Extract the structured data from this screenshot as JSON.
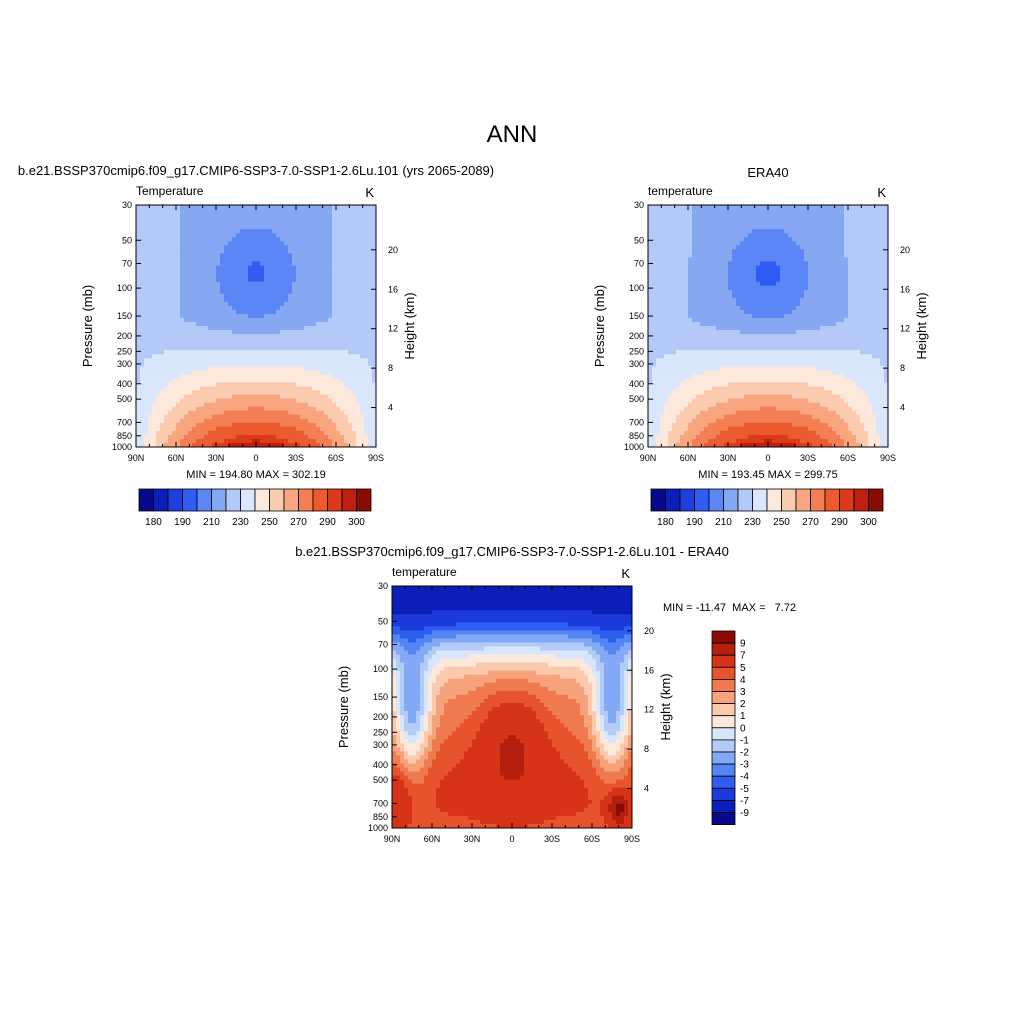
{
  "figure": {
    "title": "ANN"
  },
  "colors": {
    "abs_palette": [
      "#08088a",
      "#0b1fb8",
      "#1f3fdc",
      "#2f5cf2",
      "#5b86f5",
      "#86a8f3",
      "#b4c9f7",
      "#d9e6fb",
      "#fde8dc",
      "#fbcbb0",
      "#f8a680",
      "#f47f55",
      "#ec5a30",
      "#dd3a1c",
      "#c02010",
      "#8c0a06"
    ],
    "diff_palette": [
      "#08088a",
      "#0b1fb8",
      "#1a3ad9",
      "#2e5ef0",
      "#5584f4",
      "#83a9f6",
      "#b2cbf8",
      "#d7e6fb",
      "#fde9dc",
      "#fbc9ad",
      "#f6a27b",
      "#f07a50",
      "#e7532c",
      "#d63318",
      "#b41f0e",
      "#8a0a05"
    ]
  },
  "chart_data": [
    {
      "type": "heatmap",
      "name": "model",
      "title": "b.e21.BSSP370cmip6.f09_g17.CMIP6-SSP3-7.0-SSP1-2.6Lu.101 (yrs 2065-2089)",
      "left_label": "Temperature",
      "right_label": "K",
      "ylabel": "Pressure (mb)",
      "y2label": "Height (km)",
      "x_ticks": [
        "90N",
        "60N",
        "30N",
        "0",
        "30S",
        "60S",
        "90S"
      ],
      "y_ticks": [
        30,
        50,
        70,
        100,
        150,
        200,
        250,
        300,
        400,
        500,
        700,
        850,
        1000
      ],
      "y2_ticks": [
        20,
        16,
        12,
        8,
        4
      ],
      "ylim": [
        1000,
        30
      ],
      "y_scale": "log",
      "stats": "MIN = 194.80  MAX = 302.19",
      "levels": [
        180,
        185,
        190,
        200,
        210,
        220,
        230,
        240,
        250,
        260,
        270,
        280,
        290,
        295,
        300
      ],
      "colorbar_labels": [
        "180",
        "190",
        "210",
        "230",
        "250",
        "270",
        "290",
        "300"
      ],
      "colorbar_orientation": "horizontal"
    },
    {
      "type": "heatmap",
      "name": "obs",
      "title": "ERA40",
      "left_label": "temperature",
      "right_label": "K",
      "ylabel": "Pressure (mb)",
      "y2label": "Height (km)",
      "x_ticks": [
        "90N",
        "60N",
        "30N",
        "0",
        "30S",
        "60S",
        "90S"
      ],
      "y_ticks": [
        30,
        50,
        70,
        100,
        150,
        200,
        250,
        300,
        400,
        500,
        700,
        850,
        1000
      ],
      "y2_ticks": [
        20,
        16,
        12,
        8,
        4
      ],
      "ylim": [
        1000,
        30
      ],
      "y_scale": "log",
      "stats": "MIN = 193.45  MAX = 299.75",
      "levels": [
        180,
        185,
        190,
        200,
        210,
        220,
        230,
        240,
        250,
        260,
        270,
        280,
        290,
        295,
        300
      ],
      "colorbar_labels": [
        "180",
        "190",
        "210",
        "230",
        "250",
        "270",
        "290",
        "300"
      ],
      "colorbar_orientation": "horizontal"
    },
    {
      "type": "heatmap",
      "name": "diff",
      "title": "b.e21.BSSP370cmip6.f09_g17.CMIP6-SSP3-7.0-SSP1-2.6Lu.101 - ERA40",
      "left_label": "temperature",
      "right_label": "K",
      "ylabel": "Pressure (mb)",
      "y2label": "Height (km)",
      "x_ticks": [
        "90N",
        "60N",
        "30N",
        "0",
        "30S",
        "60S",
        "90S"
      ],
      "y_ticks": [
        30,
        50,
        70,
        100,
        150,
        200,
        250,
        300,
        400,
        500,
        700,
        850,
        1000
      ],
      "y2_ticks": [
        20,
        16,
        12,
        8,
        4
      ],
      "ylim": [
        1000,
        30
      ],
      "y_scale": "log",
      "stats": "MIN = -11.47  MAX =   7.72",
      "levels": [
        -9,
        -7,
        -5,
        -4,
        -3,
        -2,
        -1,
        0,
        1,
        2,
        3,
        4,
        5,
        7,
        9
      ],
      "colorbar_labels": [
        "9",
        "7",
        "5",
        "4",
        "3",
        "2",
        "1",
        "0",
        "-1",
        "-2",
        "-3",
        "-4",
        "-5",
        "-7",
        "-9"
      ],
      "colorbar_orientation": "vertical"
    }
  ]
}
